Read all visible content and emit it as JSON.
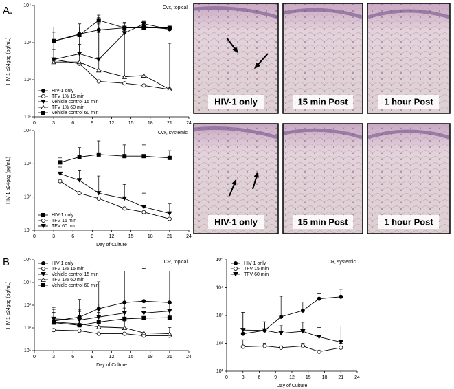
{
  "panel_labels": [
    "A.",
    "B"
  ],
  "micrographs": [
    {
      "label": "HIV-1 only"
    },
    {
      "label": "15 min Post"
    },
    {
      "label": "1 hour Post"
    },
    {
      "label": "HIV-1 only"
    },
    {
      "label": "15 min Post"
    },
    {
      "label": "1 hour Post"
    }
  ],
  "chart_data": [
    {
      "type": "line",
      "title": "Cvx, topical",
      "y_label": "HIV-1 p24gag (pg/mL)",
      "log_y": true,
      "legend": "lower left",
      "x": [
        3,
        7,
        10,
        14,
        17,
        21
      ],
      "xlim": [
        0,
        24
      ],
      "xticks": [
        0,
        3,
        6,
        9,
        12,
        15,
        18,
        21,
        24
      ],
      "ylim": [
        10,
        10000
      ],
      "yticks": [
        {
          "value": 10,
          "label": "10¹"
        },
        {
          "value": 100,
          "label": "10²"
        },
        {
          "value": 1000,
          "label": "10³"
        },
        {
          "value": 10000,
          "label": "10⁴"
        }
      ],
      "series": [
        {
          "name": "HIV-1 only",
          "color": "#000000",
          "marker": "circle",
          "filled": true,
          "values": [
            1100,
            1700,
            2200,
            2500,
            2700,
            2300
          ],
          "errors": [
            1500,
            1500,
            2500,
            1000,
            1000,
            500
          ]
        },
        {
          "name": "TFV 1% 15 min",
          "color": "#000000",
          "marker": "circle",
          "filled": false,
          "values": [
            350,
            270,
            90,
            80,
            70,
            55
          ],
          "errors": [
            null,
            null,
            null,
            null,
            null,
            900
          ]
        },
        {
          "name": "Vehicle control 15 min",
          "color": "#000000",
          "marker": "triangle-down",
          "filled": true,
          "values": [
            350,
            500,
            350,
            1800,
            3200,
            2300
          ],
          "errors": [
            300,
            400,
            1500,
            800,
            700,
            500
          ]
        },
        {
          "name": "TFV 1% 60 min",
          "color": "#000000",
          "marker": "triangle-up",
          "filled": false,
          "values": [
            300,
            300,
            180,
            120,
            130,
            55
          ],
          "errors": [
            700,
            1500,
            3000,
            2000,
            3000,
            null
          ]
        },
        {
          "name": "Vehicle control 60 min",
          "color": "#000000",
          "marker": "square",
          "filled": true,
          "values": [
            1100,
            1600,
            4000,
            2500,
            2500,
            2500
          ],
          "errors": [
            800,
            1000,
            1500,
            800,
            800,
            300
          ]
        }
      ]
    },
    {
      "type": "line",
      "title": "Cvx, systemic",
      "y_label": "HIV-1 p24gag (pg/mL)",
      "x_label": "Day of Culture",
      "log_y": true,
      "legend": "lower left",
      "x": [
        4,
        7,
        10,
        14,
        17,
        21
      ],
      "xlim": [
        0,
        24
      ],
      "xticks": [
        0,
        3,
        6,
        9,
        12,
        15,
        18,
        21,
        24
      ],
      "ylim": [
        10,
        10000
      ],
      "yticks": [
        {
          "value": 10,
          "label": "10¹"
        },
        {
          "value": 100,
          "label": "10²"
        },
        {
          "value": 1000,
          "label": "10³"
        },
        {
          "value": 10000,
          "label": "10⁴"
        }
      ],
      "series": [
        {
          "name": "HIV-1 only",
          "color": "#000000",
          "marker": "square",
          "filled": true,
          "values": [
            1100,
            1600,
            1900,
            1700,
            1700,
            1500
          ],
          "errors": [
            400,
            1500,
            3000,
            2000,
            2000,
            1000
          ]
        },
        {
          "name": "TFV 15 min",
          "color": "#000000",
          "marker": "circle",
          "filled": false,
          "values": [
            300,
            130,
            90,
            45,
            35,
            22
          ],
          "errors": [
            null,
            null,
            null,
            null,
            null,
            null
          ]
        },
        {
          "name": "TFV 60 min",
          "color": "#000000",
          "marker": "triangle-down",
          "filled": true,
          "values": [
            500,
            320,
            130,
            90,
            50,
            32
          ],
          "errors": [
            300,
            300,
            300,
            150,
            80,
            30
          ]
        }
      ]
    },
    {
      "type": "line",
      "title": "CR, topical",
      "y_label": "HIV-1 p24gag (pg/mL)",
      "x_label": "Day of Culture",
      "log_y": true,
      "legend": "upper left",
      "x": [
        3,
        7,
        10,
        14,
        17,
        21
      ],
      "xlim": [
        0,
        24
      ],
      "xticks": [
        0,
        3,
        6,
        9,
        12,
        15,
        18,
        21,
        24
      ],
      "ylim": [
        10,
        100000
      ],
      "yticks": [
        {
          "value": 10,
          "label": "10¹"
        },
        {
          "value": 100,
          "label": "10²"
        },
        {
          "value": 1000,
          "label": "10³"
        },
        {
          "value": 10000,
          "label": "10⁴"
        },
        {
          "value": 100000,
          "label": "10⁵"
        }
      ],
      "series": [
        {
          "name": "HIV-1 only",
          "color": "#000000",
          "marker": "circle",
          "filled": true,
          "values": [
            200,
            300,
            700,
            1300,
            1500,
            1300
          ],
          "errors": [
            600,
            1500,
            10000,
            30000,
            40000,
            30000
          ]
        },
        {
          "name": "TFV 1% 15 min",
          "color": "#000000",
          "marker": "circle",
          "filled": false,
          "values": [
            80,
            75,
            55,
            55,
            45,
            45
          ],
          "errors": [
            null,
            null,
            null,
            null,
            null,
            null
          ]
        },
        {
          "name": "Vehicle control 15 min",
          "color": "#000000",
          "marker": "triangle-down",
          "filled": true,
          "values": [
            250,
            220,
            300,
            450,
            450,
            550
          ],
          "errors": [
            400,
            400,
            800,
            1000,
            1200,
            1500
          ]
        },
        {
          "name": "TFV 1% 60 min",
          "color": "#000000",
          "marker": "triangle-up",
          "filled": false,
          "values": [
            180,
            150,
            110,
            100,
            60,
            55
          ],
          "errors": [
            300,
            200,
            200,
            100,
            60,
            50
          ]
        },
        {
          "name": "Vehicle control 60 min",
          "color": "#000000",
          "marker": "square",
          "filled": true,
          "values": [
            170,
            130,
            180,
            250,
            270,
            280
          ],
          "errors": [
            500,
            400,
            300,
            500,
            500,
            300
          ]
        }
      ]
    },
    {
      "type": "line",
      "title": "CR, systemic",
      "x_label": "Day of Culture",
      "log_y": true,
      "legend": "upper left",
      "x": [
        3,
        7,
        10,
        14,
        17,
        21
      ],
      "xlim": [
        0,
        24
      ],
      "xticks": [
        0,
        3,
        6,
        9,
        12,
        15,
        18,
        21,
        24
      ],
      "ylim": [
        10,
        100000
      ],
      "yticks": [
        {
          "value": 10,
          "label": "10¹"
        },
        {
          "value": 100,
          "label": "10²"
        },
        {
          "value": 1000,
          "label": "10³"
        },
        {
          "value": 10000,
          "label": "10⁴"
        },
        {
          "value": 100000,
          "label": "10⁵"
        }
      ],
      "series": [
        {
          "name": "HIV-1 only",
          "color": "#000000",
          "marker": "circle",
          "filled": true,
          "values": [
            220,
            290,
            900,
            1500,
            4000,
            4700
          ],
          "errors": [
            1000,
            300,
            4000,
            1500,
            2000,
            4000
          ]
        },
        {
          "name": "TFV 15 min",
          "color": "#000000",
          "marker": "circle",
          "filled": false,
          "values": [
            75,
            80,
            70,
            80,
            50,
            70
          ],
          "errors": [
            60,
            20,
            null,
            20,
            null,
            30
          ]
        },
        {
          "name": "TFV 60 min",
          "color": "#000000",
          "marker": "triangle-down",
          "filled": true,
          "values": [
            300,
            290,
            230,
            270,
            170,
            110
          ],
          "errors": [
            1000,
            300,
            200,
            300,
            200,
            300
          ]
        }
      ]
    }
  ]
}
